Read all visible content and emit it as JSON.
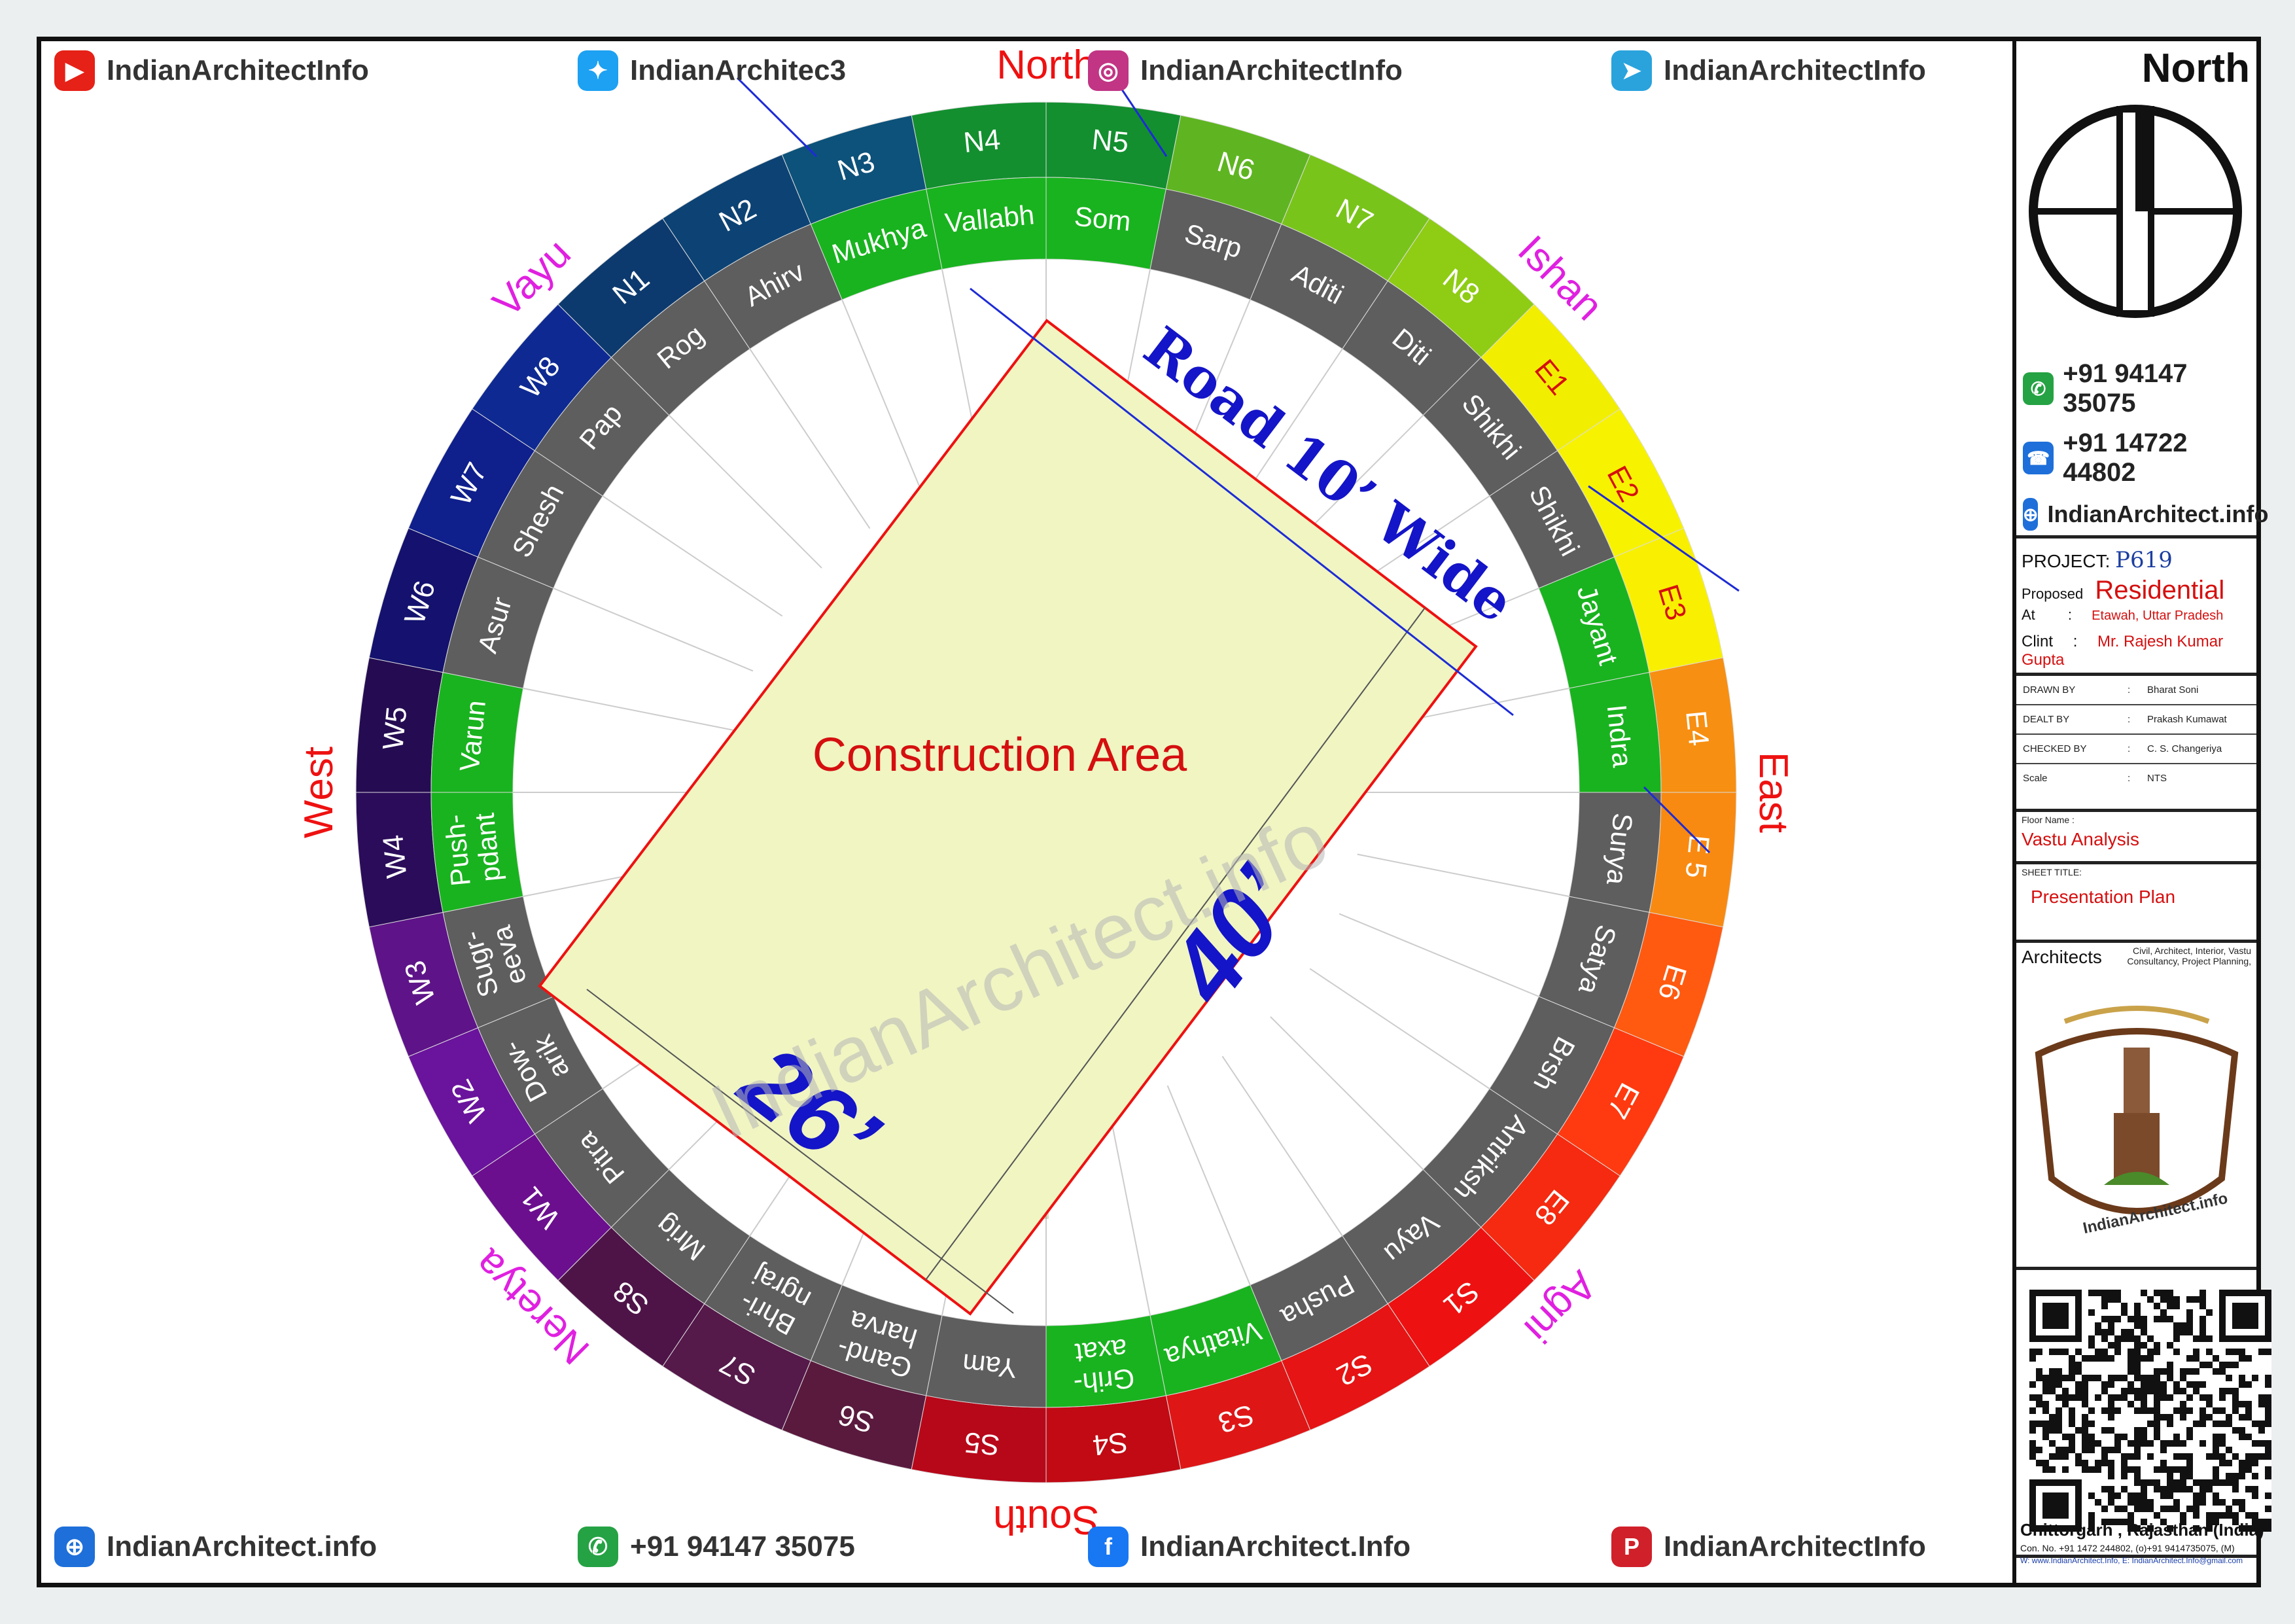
{
  "socials_top": [
    {
      "icon": "youtube-icon",
      "color": "#e62117",
      "glyph": "▶",
      "text": "IndianArchitectInfo"
    },
    {
      "icon": "twitter-icon",
      "color": "#1da1f2",
      "glyph": "✦",
      "text": "IndianArchitec3"
    },
    {
      "icon": "instagram-icon",
      "color": "#c13584",
      "glyph": "◎",
      "text": "IndianArchitectInfo"
    },
    {
      "icon": "telegram-icon",
      "color": "#2aa3dd",
      "glyph": "➤",
      "text": "IndianArchitectInfo"
    }
  ],
  "socials_bottom": [
    {
      "icon": "globe-icon",
      "color": "#1e6fd9",
      "glyph": "⊕",
      "text": "IndianArchitect.info"
    },
    {
      "icon": "whatsapp-icon",
      "color": "#25a244",
      "glyph": "✆",
      "text": "+91 94147 35075"
    },
    {
      "icon": "facebook-icon",
      "color": "#1877f2",
      "glyph": "f",
      "text": "IndianArchitect.Info"
    },
    {
      "icon": "pinterest-icon",
      "color": "#d0202a",
      "glyph": "P",
      "text": "IndianArchitectInfo"
    }
  ],
  "directions": {
    "north": "North",
    "east": "East",
    "south": "South",
    "west": "West",
    "ishan": "Ishan",
    "agni": "Agni",
    "nairitya": "Neretya",
    "vayu": "Vayu"
  },
  "outer_ring": [
    {
      "label": "N4",
      "color": "#138f2f"
    },
    {
      "label": "N5",
      "color": "#138f2f"
    },
    {
      "label": "N6",
      "color": "#5fb521"
    },
    {
      "label": "N7",
      "color": "#79c41a"
    },
    {
      "label": "N8",
      "color": "#8fcc14"
    },
    {
      "label": "E1",
      "color": "#f2ee00"
    },
    {
      "label": "E2",
      "color": "#f7f200"
    },
    {
      "label": "E3",
      "color": "#f8f000"
    },
    {
      "label": "E4",
      "color": "#f78f12"
    },
    {
      "label": "E 5",
      "color": "#f88a12"
    },
    {
      "label": "E6",
      "color": "#ff5a10"
    },
    {
      "label": "E7",
      "color": "#ff3a10"
    },
    {
      "label": "E8",
      "color": "#f52a10"
    },
    {
      "label": "S1",
      "color": "#ee1111"
    },
    {
      "label": "S2",
      "color": "#e61414"
    },
    {
      "label": "S3",
      "color": "#df1616"
    },
    {
      "label": "S4",
      "color": "#c10a14"
    },
    {
      "label": "S5",
      "color": "#b7081a"
    },
    {
      "label": "S6",
      "color": "#5a1a3e"
    },
    {
      "label": "S7",
      "color": "#55194a"
    },
    {
      "label": "S8",
      "color": "#4e1448"
    },
    {
      "label": "W1",
      "color": "#6b0f8e"
    },
    {
      "label": "W2",
      "color": "#6a139c"
    },
    {
      "label": "W3",
      "color": "#5e1488"
    },
    {
      "label": "W4",
      "color": "#2b0c5a"
    },
    {
      "label": "W5",
      "color": "#250c52"
    },
    {
      "label": "W6",
      "color": "#14126e"
    },
    {
      "label": "W7",
      "color": "#0f1f8c"
    },
    {
      "label": "W8",
      "color": "#0e2a92"
    },
    {
      "label": "N1",
      "color": "#0d3a6e"
    },
    {
      "label": "N2",
      "color": "#0d4374"
    },
    {
      "label": "N3",
      "color": "#0d527a"
    }
  ],
  "inner_ring": [
    {
      "label": "Vallabh",
      "color": "#19b31f"
    },
    {
      "label": "Som",
      "color": "#19b31f"
    },
    {
      "label": "Sarp",
      "color": "#5e5e5e"
    },
    {
      "label": "Aditi",
      "color": "#5e5e5e"
    },
    {
      "label": "Diti",
      "color": "#5e5e5e"
    },
    {
      "label": "Shikhi",
      "color": "#5e5e5e"
    },
    {
      "label": "Shikhi",
      "color": "#5e5e5e"
    },
    {
      "label": "Jayant",
      "color": "#19b31f"
    },
    {
      "label": "Indra",
      "color": "#19b31f"
    },
    {
      "label": "Surya",
      "color": "#5e5e5e"
    },
    {
      "label": "Satya",
      "color": "#5e5e5e"
    },
    {
      "label": "Brsh",
      "color": "#5e5e5e"
    },
    {
      "label": "Antriksh",
      "color": "#5e5e5e"
    },
    {
      "label": "Vayu",
      "color": "#5e5e5e"
    },
    {
      "label": "Pusha",
      "color": "#5e5e5e"
    },
    {
      "label": "Vitathya",
      "color": "#19b31f"
    },
    {
      "label": "Grih-|axat",
      "color": "#19b31f"
    },
    {
      "label": "Yam",
      "color": "#5e5e5e"
    },
    {
      "label": "Gand-|harva",
      "color": "#5e5e5e"
    },
    {
      "label": "Bhri-|ngraj",
      "color": "#5e5e5e"
    },
    {
      "label": "Mrig",
      "color": "#5e5e5e"
    },
    {
      "label": "Pitra",
      "color": "#5e5e5e"
    },
    {
      "label": "Dow-|arik",
      "color": "#5e5e5e"
    },
    {
      "label": "Sugr-|eeva",
      "color": "#5e5e5e"
    },
    {
      "label": "Push-|pdant",
      "color": "#19b31f"
    },
    {
      "label": "Varun",
      "color": "#19b31f"
    },
    {
      "label": "Asur",
      "color": "#5e5e5e"
    },
    {
      "label": "Shesh",
      "color": "#5e5e5e"
    },
    {
      "label": "Pap",
      "color": "#5e5e5e"
    },
    {
      "label": "Rog",
      "color": "#5e5e5e"
    },
    {
      "label": "Ahirv",
      "color": "#5e5e5e"
    },
    {
      "label": "Mukhya",
      "color": "#19b31f"
    }
  ],
  "plot": {
    "area_label": "Construction Area",
    "road_label": "Road 10’ Wide",
    "width_label": "26’",
    "length_label": "40’",
    "watermark": "IndianArchitect.info"
  },
  "side": {
    "north_title": "North",
    "phone1": "+91 94147 35075",
    "phone2": "+91 14722 44802",
    "website": "IndianArchitect.info",
    "project_label": "PROJECT:",
    "project_value": "P619",
    "proposed_label": "Proposed",
    "proposed_value": "Residential",
    "at_label": "At",
    "at_colon": ":",
    "at_value": "Etawah, Uttar Pradesh",
    "clint_label": "Clint",
    "clint_colon": ":",
    "clint_value": "Mr. Rajesh Kumar Gupta",
    "drawn_label": "DRAWN BY",
    "drawn_value": "Bharat Soni",
    "dealt_label": "DEALT BY",
    "dealt_value": "Prakash Kumawat",
    "checked_label": "CHECKED BY",
    "checked_value": "C. S. Changeriya",
    "scale_label": "Scale",
    "scale_value": "NTS",
    "colon": ":",
    "floor_label": "Floor Name :",
    "floor_value": "Vastu Analysis",
    "sheet_label": "SHEET TITLE:",
    "sheet_value": "Presentation Plan",
    "architects_label": "Architects",
    "services": "Civil, Architect, Interior, Vastu Consultancy, Project Planning,",
    "logo_text": "IndianArchitect.info",
    "city": "Chittorgarh , Rajasthan (India)",
    "contact_line": "Con. No. +91 1472 244802, (o)+91 9414735075, (M)",
    "web_line": "W: www.IndianArchitect.Info, E: IndianArchitect.Info@gmail.com"
  }
}
